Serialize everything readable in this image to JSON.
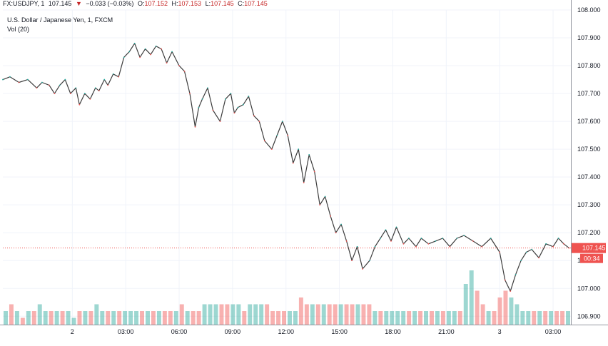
{
  "legend": {
    "symbol": "FX:USDJPY, 1",
    "last": "107.145",
    "change": "−0.033 (−0.03%)",
    "open_label": "O:",
    "open": "107.152",
    "high_label": "H:",
    "high": "107.153",
    "low_label": "L:",
    "low": "107.145",
    "close_label": "C:",
    "close": "107.145"
  },
  "instrument_title": "U.S. Dollar / Japanese Yen, 1, FXCM",
  "volume_title": "Vol (20)",
  "price_tag": {
    "value": "107.145",
    "countdown": "00:34"
  },
  "colors": {
    "up": "#26a69a",
    "down": "#ef5350",
    "last_line": "#ef5350",
    "grid": "#f0f3fa",
    "axis": "#9598a1"
  },
  "chart_data": {
    "type": "line",
    "title": "U.S. Dollar / Japanese Yen, 1, FXCM",
    "xlabel": "",
    "ylabel": "",
    "ylim": [
      106.87,
      108.0
    ],
    "y_ticks": [
      "108.000",
      "107.900",
      "107.800",
      "107.700",
      "107.600",
      "107.500",
      "107.400",
      "107.300",
      "107.200",
      "107.100",
      "107.000",
      "106.900"
    ],
    "x_ticks": [
      {
        "label": "2",
        "hours": 0
      },
      {
        "label": "03:00",
        "hours": 3
      },
      {
        "label": "06:00",
        "hours": 6
      },
      {
        "label": "09:00",
        "hours": 9
      },
      {
        "label": "12:00",
        "hours": 12
      },
      {
        "label": "15:00",
        "hours": 15
      },
      {
        "label": "18:00",
        "hours": 18
      },
      {
        "label": "21:00",
        "hours": 21
      },
      {
        "label": "3",
        "hours": 24
      },
      {
        "label": "03:00",
        "hours": 27
      }
    ],
    "xlim_hours": [
      -3.9,
      28.0
    ],
    "last_price": 107.145,
    "series": [
      {
        "name": "FX:USDJPY",
        "x_hours": [
          -3.9,
          -3.5,
          -3.0,
          -2.5,
          -2.0,
          -1.7,
          -1.3,
          -1.0,
          -0.7,
          -0.4,
          -0.1,
          0.2,
          0.4,
          0.7,
          1.0,
          1.3,
          1.5,
          1.8,
          2.0,
          2.3,
          2.6,
          2.9,
          3.2,
          3.5,
          3.8,
          4.1,
          4.4,
          4.7,
          5.0,
          5.3,
          5.6,
          6.0,
          6.3,
          6.6,
          6.9,
          7.1,
          7.3,
          7.6,
          7.9,
          8.3,
          8.6,
          8.9,
          9.1,
          9.3,
          9.6,
          9.9,
          10.2,
          10.5,
          10.8,
          11.2,
          11.5,
          11.8,
          12.1,
          12.4,
          12.7,
          13.0,
          13.3,
          13.6,
          13.9,
          14.2,
          14.5,
          14.8,
          15.1,
          15.4,
          15.7,
          16.0,
          16.3,
          16.7,
          17.0,
          17.3,
          17.6,
          17.9,
          18.2,
          18.6,
          18.9,
          19.3,
          19.6,
          20.0,
          20.4,
          20.8,
          21.2,
          21.6,
          22.0,
          22.5,
          23.0,
          23.5,
          24.0,
          24.3,
          24.6,
          24.9,
          25.2,
          25.5,
          25.8,
          26.2,
          26.6,
          27.0,
          27.3,
          27.6,
          27.9
        ],
        "values": [
          107.75,
          107.76,
          107.74,
          107.75,
          107.72,
          107.74,
          107.73,
          107.7,
          107.73,
          107.75,
          107.7,
          107.72,
          107.66,
          107.7,
          107.68,
          107.72,
          107.71,
          107.75,
          107.73,
          107.77,
          107.76,
          107.83,
          107.85,
          107.88,
          107.83,
          107.86,
          107.84,
          107.87,
          107.86,
          107.81,
          107.85,
          107.8,
          107.78,
          107.7,
          107.58,
          107.65,
          107.68,
          107.72,
          107.64,
          107.6,
          107.68,
          107.7,
          107.63,
          107.65,
          107.66,
          107.69,
          107.62,
          107.6,
          107.53,
          107.5,
          107.55,
          107.6,
          107.55,
          107.45,
          107.5,
          107.38,
          107.48,
          107.42,
          107.3,
          107.33,
          107.26,
          107.2,
          107.23,
          107.17,
          107.1,
          107.15,
          107.07,
          107.1,
          107.15,
          107.18,
          107.21,
          107.17,
          107.22,
          107.16,
          107.18,
          107.15,
          107.18,
          107.16,
          107.17,
          107.18,
          107.15,
          107.18,
          107.19,
          107.17,
          107.15,
          107.18,
          107.13,
          107.03,
          106.99,
          107.05,
          107.1,
          107.13,
          107.14,
          107.11,
          107.16,
          107.15,
          107.18,
          107.16,
          107.145
        ]
      }
    ],
    "volume_ylim": [
      0,
      10
    ],
    "volume_values": [
      2,
      3,
      2,
      1,
      2,
      2,
      3,
      2,
      2,
      2,
      2,
      2,
      1,
      2,
      2,
      2,
      3,
      2,
      2,
      2,
      2,
      2,
      2,
      2,
      2,
      2,
      2,
      2,
      2,
      2,
      2,
      3,
      2,
      2,
      2,
      3,
      3,
      3,
      3,
      3,
      3,
      3,
      2,
      3,
      3,
      3,
      3,
      2,
      2,
      2,
      2,
      2,
      4,
      3,
      3,
      3,
      3,
      3,
      3,
      3,
      3,
      3,
      3,
      3,
      3,
      2,
      2,
      2,
      2,
      2,
      2,
      2,
      2,
      2,
      2,
      2,
      2,
      2,
      2,
      2,
      2,
      6,
      8,
      5,
      3,
      2,
      2,
      4,
      5,
      4,
      3,
      2,
      2,
      2,
      2,
      2,
      2,
      2,
      2,
      2
    ],
    "volume_up_flags": [
      1,
      0,
      1,
      0,
      1,
      0,
      1,
      1,
      0,
      1,
      0,
      1,
      1,
      0,
      1,
      0,
      1,
      1,
      0,
      1,
      0,
      1,
      1,
      1,
      0,
      1,
      0,
      1,
      0,
      0,
      1,
      0,
      1,
      0,
      0,
      1,
      1,
      1,
      0,
      0,
      1,
      1,
      0,
      1,
      1,
      1,
      0,
      0,
      0,
      0,
      1,
      1,
      0,
      0,
      1,
      0,
      1,
      0,
      0,
      1,
      0,
      0,
      1,
      0,
      0,
      1,
      0,
      1,
      1,
      1,
      1,
      0,
      1,
      0,
      1,
      0,
      1,
      0,
      1,
      1,
      0,
      1,
      1,
      0,
      0,
      1,
      0,
      0,
      0,
      1,
      1,
      1,
      1,
      0,
      1,
      0,
      1,
      0,
      0,
      1
    ]
  }
}
